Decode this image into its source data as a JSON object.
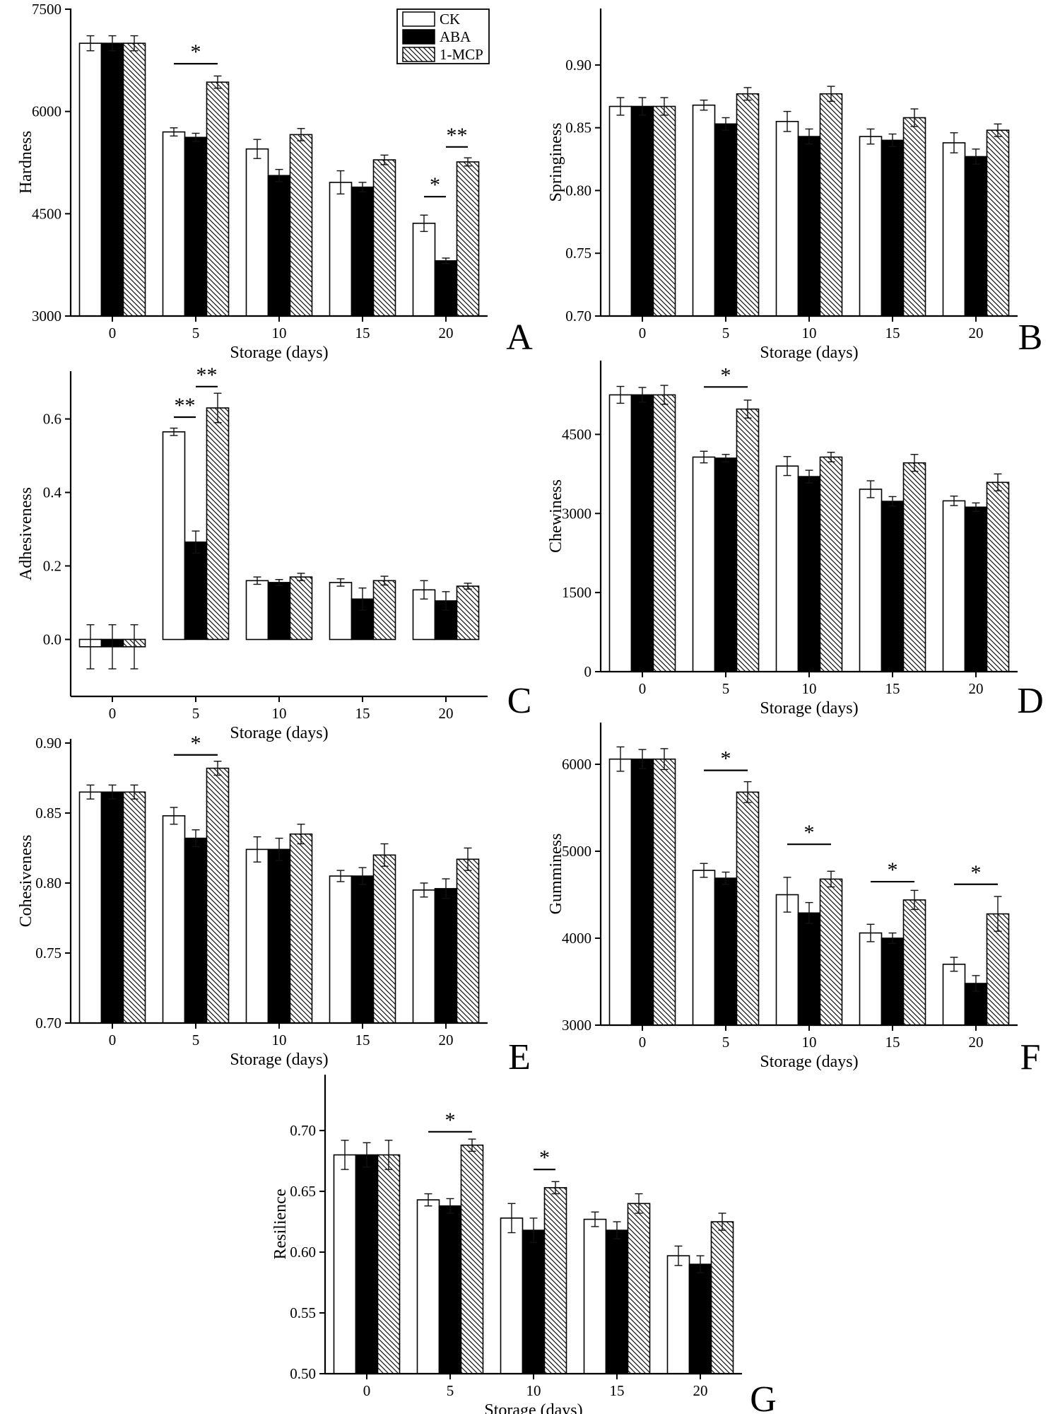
{
  "legend": {
    "items": [
      {
        "label": "CK",
        "style": "white"
      },
      {
        "label": "ABA",
        "style": "black"
      },
      {
        "label": "1-MCP",
        "style": "hatch"
      }
    ]
  },
  "chart_data": [
    {
      "panel_label": "A",
      "type": "bar",
      "ylabel": "Hardness",
      "xlabel": "Storage (days)",
      "categories": [
        "0",
        "5",
        "10",
        "15",
        "20"
      ],
      "ylim": [
        3000,
        7510
      ],
      "yticks": [
        "3000",
        "4500",
        "6000",
        "7500"
      ],
      "series": [
        {
          "name": "CK",
          "values": [
            7000,
            5700,
            5450,
            4960,
            4360
          ],
          "errors": [
            110,
            60,
            140,
            170,
            120
          ]
        },
        {
          "name": "ABA",
          "values": [
            7000,
            5620,
            5060,
            4890,
            3810
          ],
          "errors": [
            110,
            60,
            90,
            70,
            40
          ]
        },
        {
          "name": "1-MCP",
          "values": [
            7000,
            6430,
            5660,
            5290,
            5260
          ],
          "errors": [
            110,
            90,
            90,
            70,
            60
          ]
        }
      ],
      "significance": [
        {
          "group": 1,
          "from": 0,
          "to": 2,
          "y": 6700,
          "label": "*"
        },
        {
          "group": 4,
          "from": 0,
          "to": 1,
          "y": 4750,
          "label": "*"
        },
        {
          "group": 4,
          "from": 1,
          "to": 2,
          "y": 5480,
          "label": "**"
        }
      ],
      "show_legend": true
    },
    {
      "panel_label": "B",
      "type": "bar",
      "ylabel": "Springiness",
      "xlabel": "Storage (days)",
      "categories": [
        "0",
        "5",
        "10",
        "15",
        "20"
      ],
      "ylim": [
        0.7,
        0.945
      ],
      "yticks": [
        "0.70",
        "0.75",
        "0.80",
        "0.85",
        "0.90"
      ],
      "series": [
        {
          "name": "CK",
          "values": [
            0.867,
            0.868,
            0.855,
            0.843,
            0.838
          ],
          "errors": [
            0.007,
            0.004,
            0.008,
            0.006,
            0.008
          ]
        },
        {
          "name": "ABA",
          "values": [
            0.867,
            0.853,
            0.843,
            0.84,
            0.827
          ],
          "errors": [
            0.007,
            0.005,
            0.006,
            0.005,
            0.006
          ]
        },
        {
          "name": "1-MCP",
          "values": [
            0.867,
            0.877,
            0.877,
            0.858,
            0.848
          ],
          "errors": [
            0.007,
            0.005,
            0.006,
            0.007,
            0.005
          ]
        }
      ],
      "significance": [],
      "show_legend": false
    },
    {
      "panel_label": "C",
      "type": "bar",
      "ylabel": "Adhesiveness",
      "xlabel": "Storage (days)",
      "categories": [
        "0",
        "5",
        "10",
        "15",
        "20"
      ],
      "ylim": [
        -0.155,
        0.73
      ],
      "baseline": 0,
      "yticks": [
        "0.0",
        "0.2",
        "0.4",
        "0.6"
      ],
      "series": [
        {
          "name": "CK",
          "values": [
            -0.02,
            0.565,
            0.16,
            0.155,
            0.135
          ],
          "errors": [
            0.06,
            0.01,
            0.01,
            0.01,
            0.025
          ]
        },
        {
          "name": "ABA",
          "values": [
            -0.02,
            0.265,
            0.155,
            0.11,
            0.105
          ],
          "errors": [
            0.06,
            0.03,
            0.008,
            0.03,
            0.025
          ]
        },
        {
          "name": "1-MCP",
          "values": [
            -0.02,
            0.63,
            0.17,
            0.16,
            0.145
          ],
          "errors": [
            0.06,
            0.04,
            0.01,
            0.012,
            0.008
          ]
        }
      ],
      "significance": [
        {
          "group": 1,
          "from": 0,
          "to": 1,
          "y": 0.605,
          "label": "**"
        },
        {
          "group": 1,
          "from": 1,
          "to": 2,
          "y": 0.688,
          "label": "**"
        }
      ],
      "show_legend": false
    },
    {
      "panel_label": "D",
      "type": "bar",
      "ylabel": "Chewiness",
      "xlabel": "Storage (days)",
      "categories": [
        "0",
        "5",
        "10",
        "15",
        "20"
      ],
      "ylim": [
        0,
        5900
      ],
      "yticks": [
        "0",
        "1500",
        "3000",
        "4500"
      ],
      "series": [
        {
          "name": "CK",
          "values": [
            5250,
            4070,
            3900,
            3460,
            3240
          ],
          "errors": [
            160,
            110,
            180,
            160,
            90
          ]
        },
        {
          "name": "ABA",
          "values": [
            5250,
            4050,
            3700,
            3230,
            3120
          ],
          "errors": [
            140,
            70,
            120,
            90,
            80
          ]
        },
        {
          "name": "1-MCP",
          "values": [
            5250,
            4980,
            4070,
            3960,
            3590
          ],
          "errors": [
            180,
            170,
            90,
            160,
            160
          ]
        }
      ],
      "significance": [
        {
          "group": 1,
          "from": 0,
          "to": 2,
          "y": 5400,
          "label": "*"
        }
      ],
      "show_legend": false
    },
    {
      "panel_label": "E",
      "type": "bar",
      "ylabel": "Cohesiveness",
      "xlabel": "Storage (days)",
      "categories": [
        "0",
        "5",
        "10",
        "15",
        "20"
      ],
      "ylim": [
        0.7,
        0.903
      ],
      "yticks": [
        "0.70",
        "0.75",
        "0.80",
        "0.85",
        "0.90"
      ],
      "series": [
        {
          "name": "CK",
          "values": [
            0.865,
            0.848,
            0.824,
            0.805,
            0.795
          ],
          "errors": [
            0.005,
            0.006,
            0.009,
            0.004,
            0.005
          ]
        },
        {
          "name": "ABA",
          "values": [
            0.865,
            0.832,
            0.824,
            0.805,
            0.796
          ],
          "errors": [
            0.005,
            0.006,
            0.008,
            0.006,
            0.007
          ]
        },
        {
          "name": "1-MCP",
          "values": [
            0.865,
            0.882,
            0.835,
            0.82,
            0.817
          ],
          "errors": [
            0.005,
            0.005,
            0.007,
            0.008,
            0.008
          ]
        }
      ],
      "significance": [
        {
          "group": 1,
          "from": 0,
          "to": 2,
          "y": 0.8915,
          "label": "*"
        }
      ],
      "show_legend": false
    },
    {
      "panel_label": "F",
      "type": "bar",
      "ylabel": "Gumminess",
      "xlabel": "Storage (days)",
      "categories": [
        "0",
        "5",
        "10",
        "15",
        "20"
      ],
      "ylim": [
        3000,
        6480
      ],
      "yticks": [
        "3000",
        "4000",
        "5000",
        "6000"
      ],
      "series": [
        {
          "name": "CK",
          "values": [
            6060,
            4780,
            4500,
            4060,
            3700
          ],
          "errors": [
            140,
            80,
            200,
            100,
            80
          ]
        },
        {
          "name": "ABA",
          "values": [
            6060,
            4690,
            4290,
            4000,
            3480
          ],
          "errors": [
            110,
            70,
            120,
            60,
            90
          ]
        },
        {
          "name": "1-MCP",
          "values": [
            6060,
            5680,
            4680,
            4440,
            4280
          ],
          "errors": [
            120,
            120,
            90,
            110,
            200
          ]
        }
      ],
      "significance": [
        {
          "group": 1,
          "from": 0,
          "to": 2,
          "y": 5930,
          "label": "*"
        },
        {
          "group": 2,
          "from": 0,
          "to": 2,
          "y": 5080,
          "label": "*"
        },
        {
          "group": 3,
          "from": 0,
          "to": 2,
          "y": 4650,
          "label": "*"
        },
        {
          "group": 4,
          "from": 0,
          "to": 2,
          "y": 4620,
          "label": "*"
        }
      ],
      "show_legend": false
    },
    {
      "panel_label": "G",
      "type": "bar",
      "ylabel": "Resilience",
      "xlabel": "Storage (days)",
      "categories": [
        "0",
        "5",
        "10",
        "15",
        "20"
      ],
      "ylim": [
        0.5,
        0.746
      ],
      "yticks": [
        "0.50",
        "0.55",
        "0.60",
        "0.65",
        "0.70"
      ],
      "series": [
        {
          "name": "CK",
          "values": [
            0.68,
            0.643,
            0.628,
            0.627,
            0.597
          ],
          "errors": [
            0.012,
            0.005,
            0.012,
            0.006,
            0.008
          ]
        },
        {
          "name": "ABA",
          "values": [
            0.68,
            0.638,
            0.618,
            0.618,
            0.59
          ],
          "errors": [
            0.01,
            0.006,
            0.01,
            0.007,
            0.007
          ]
        },
        {
          "name": "1-MCP",
          "values": [
            0.68,
            0.688,
            0.653,
            0.64,
            0.625
          ],
          "errors": [
            0.012,
            0.005,
            0.005,
            0.008,
            0.007
          ]
        }
      ],
      "significance": [
        {
          "group": 1,
          "from": 0,
          "to": 2,
          "y": 0.699,
          "label": "*"
        },
        {
          "group": 2,
          "from": 1,
          "to": 2,
          "y": 0.668,
          "label": "*"
        }
      ],
      "show_legend": false
    }
  ]
}
